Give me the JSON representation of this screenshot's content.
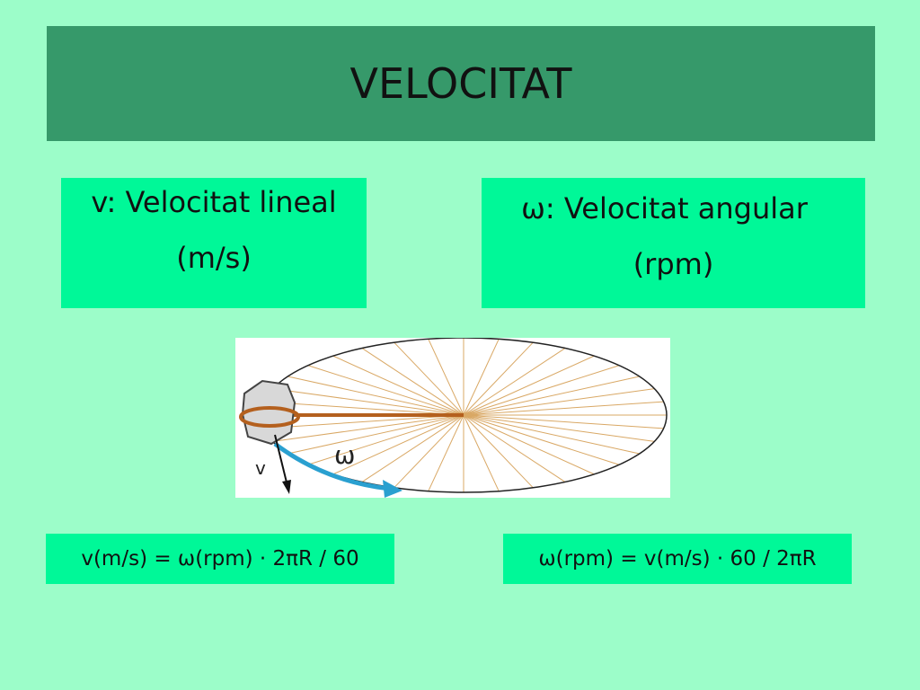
{
  "header": {
    "title": "VELOCITAT"
  },
  "boxes": [
    {
      "lines": [
        "v: Velocitat lineal",
        "(m/s)"
      ]
    },
    {
      "lines": [
        "ω: Velocitat angular",
        "(rpm)"
      ]
    }
  ],
  "diagram": {
    "labels": [
      "ω",
      "v"
    ]
  },
  "formulas": [
    "v(m/s) = ω(rpm) · 2πR / 60",
    "ω(rpm) = v(m/s) · 60 / 2πR"
  ]
}
